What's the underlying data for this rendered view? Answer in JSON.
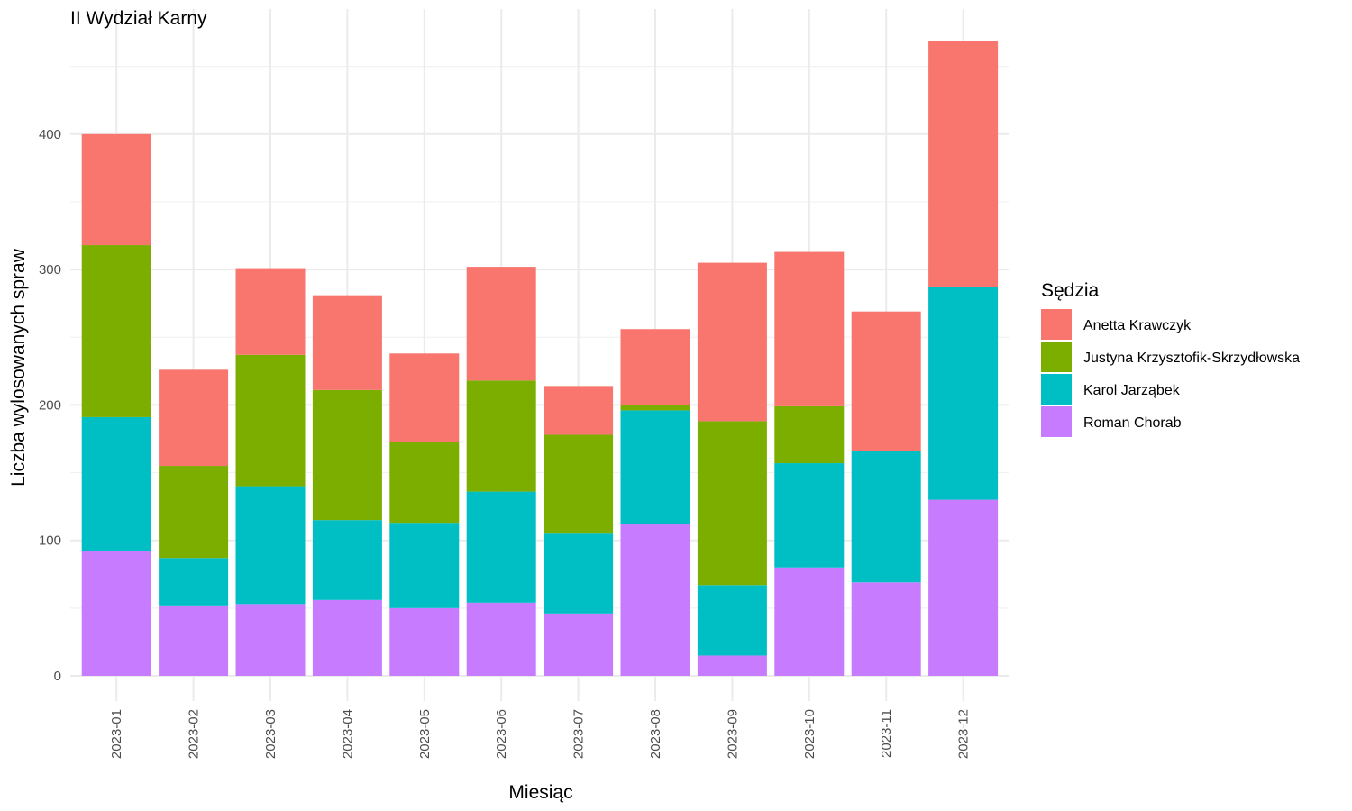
{
  "chart_data": {
    "type": "bar",
    "stacked": true,
    "title": "II Wydział Karny",
    "xlabel": "Miesiąc",
    "ylabel": "Liczba wylosowanych spraw",
    "ylim": [
      0,
      480
    ],
    "yticks": [
      0,
      100,
      200,
      300,
      400
    ],
    "grid": true,
    "legend_title": "Sędzia",
    "legend_position": "right",
    "categories": [
      "2023-01",
      "2023-02",
      "2023-03",
      "2023-04",
      "2023-05",
      "2023-06",
      "2023-07",
      "2023-08",
      "2023-09",
      "2023-10",
      "2023-11",
      "2023-12"
    ],
    "series": [
      {
        "name": "Roman Chorab",
        "color": "#C77CFF",
        "values": [
          92,
          52,
          53,
          56,
          50,
          54,
          46,
          112,
          15,
          80,
          69,
          130
        ]
      },
      {
        "name": "Karol Jarząbek",
        "color": "#00BFC4",
        "values": [
          99,
          35,
          87,
          59,
          63,
          82,
          59,
          84,
          52,
          77,
          97,
          157
        ]
      },
      {
        "name": "Justyna Krzysztofik-Skrzydłowska",
        "color": "#7CAE00",
        "values": [
          127,
          68,
          97,
          96,
          60,
          82,
          73,
          4,
          121,
          42,
          0,
          0
        ]
      },
      {
        "name": "Anetta Krawczyk",
        "color": "#F8766D",
        "values": [
          82,
          71,
          64,
          70,
          65,
          84,
          36,
          56,
          117,
          114,
          103,
          182
        ]
      }
    ],
    "legend_order": [
      "Anetta Krawczyk",
      "Justyna Krzysztofik-Skrzydłowska",
      "Karol Jarząbek",
      "Roman Chorab"
    ]
  }
}
